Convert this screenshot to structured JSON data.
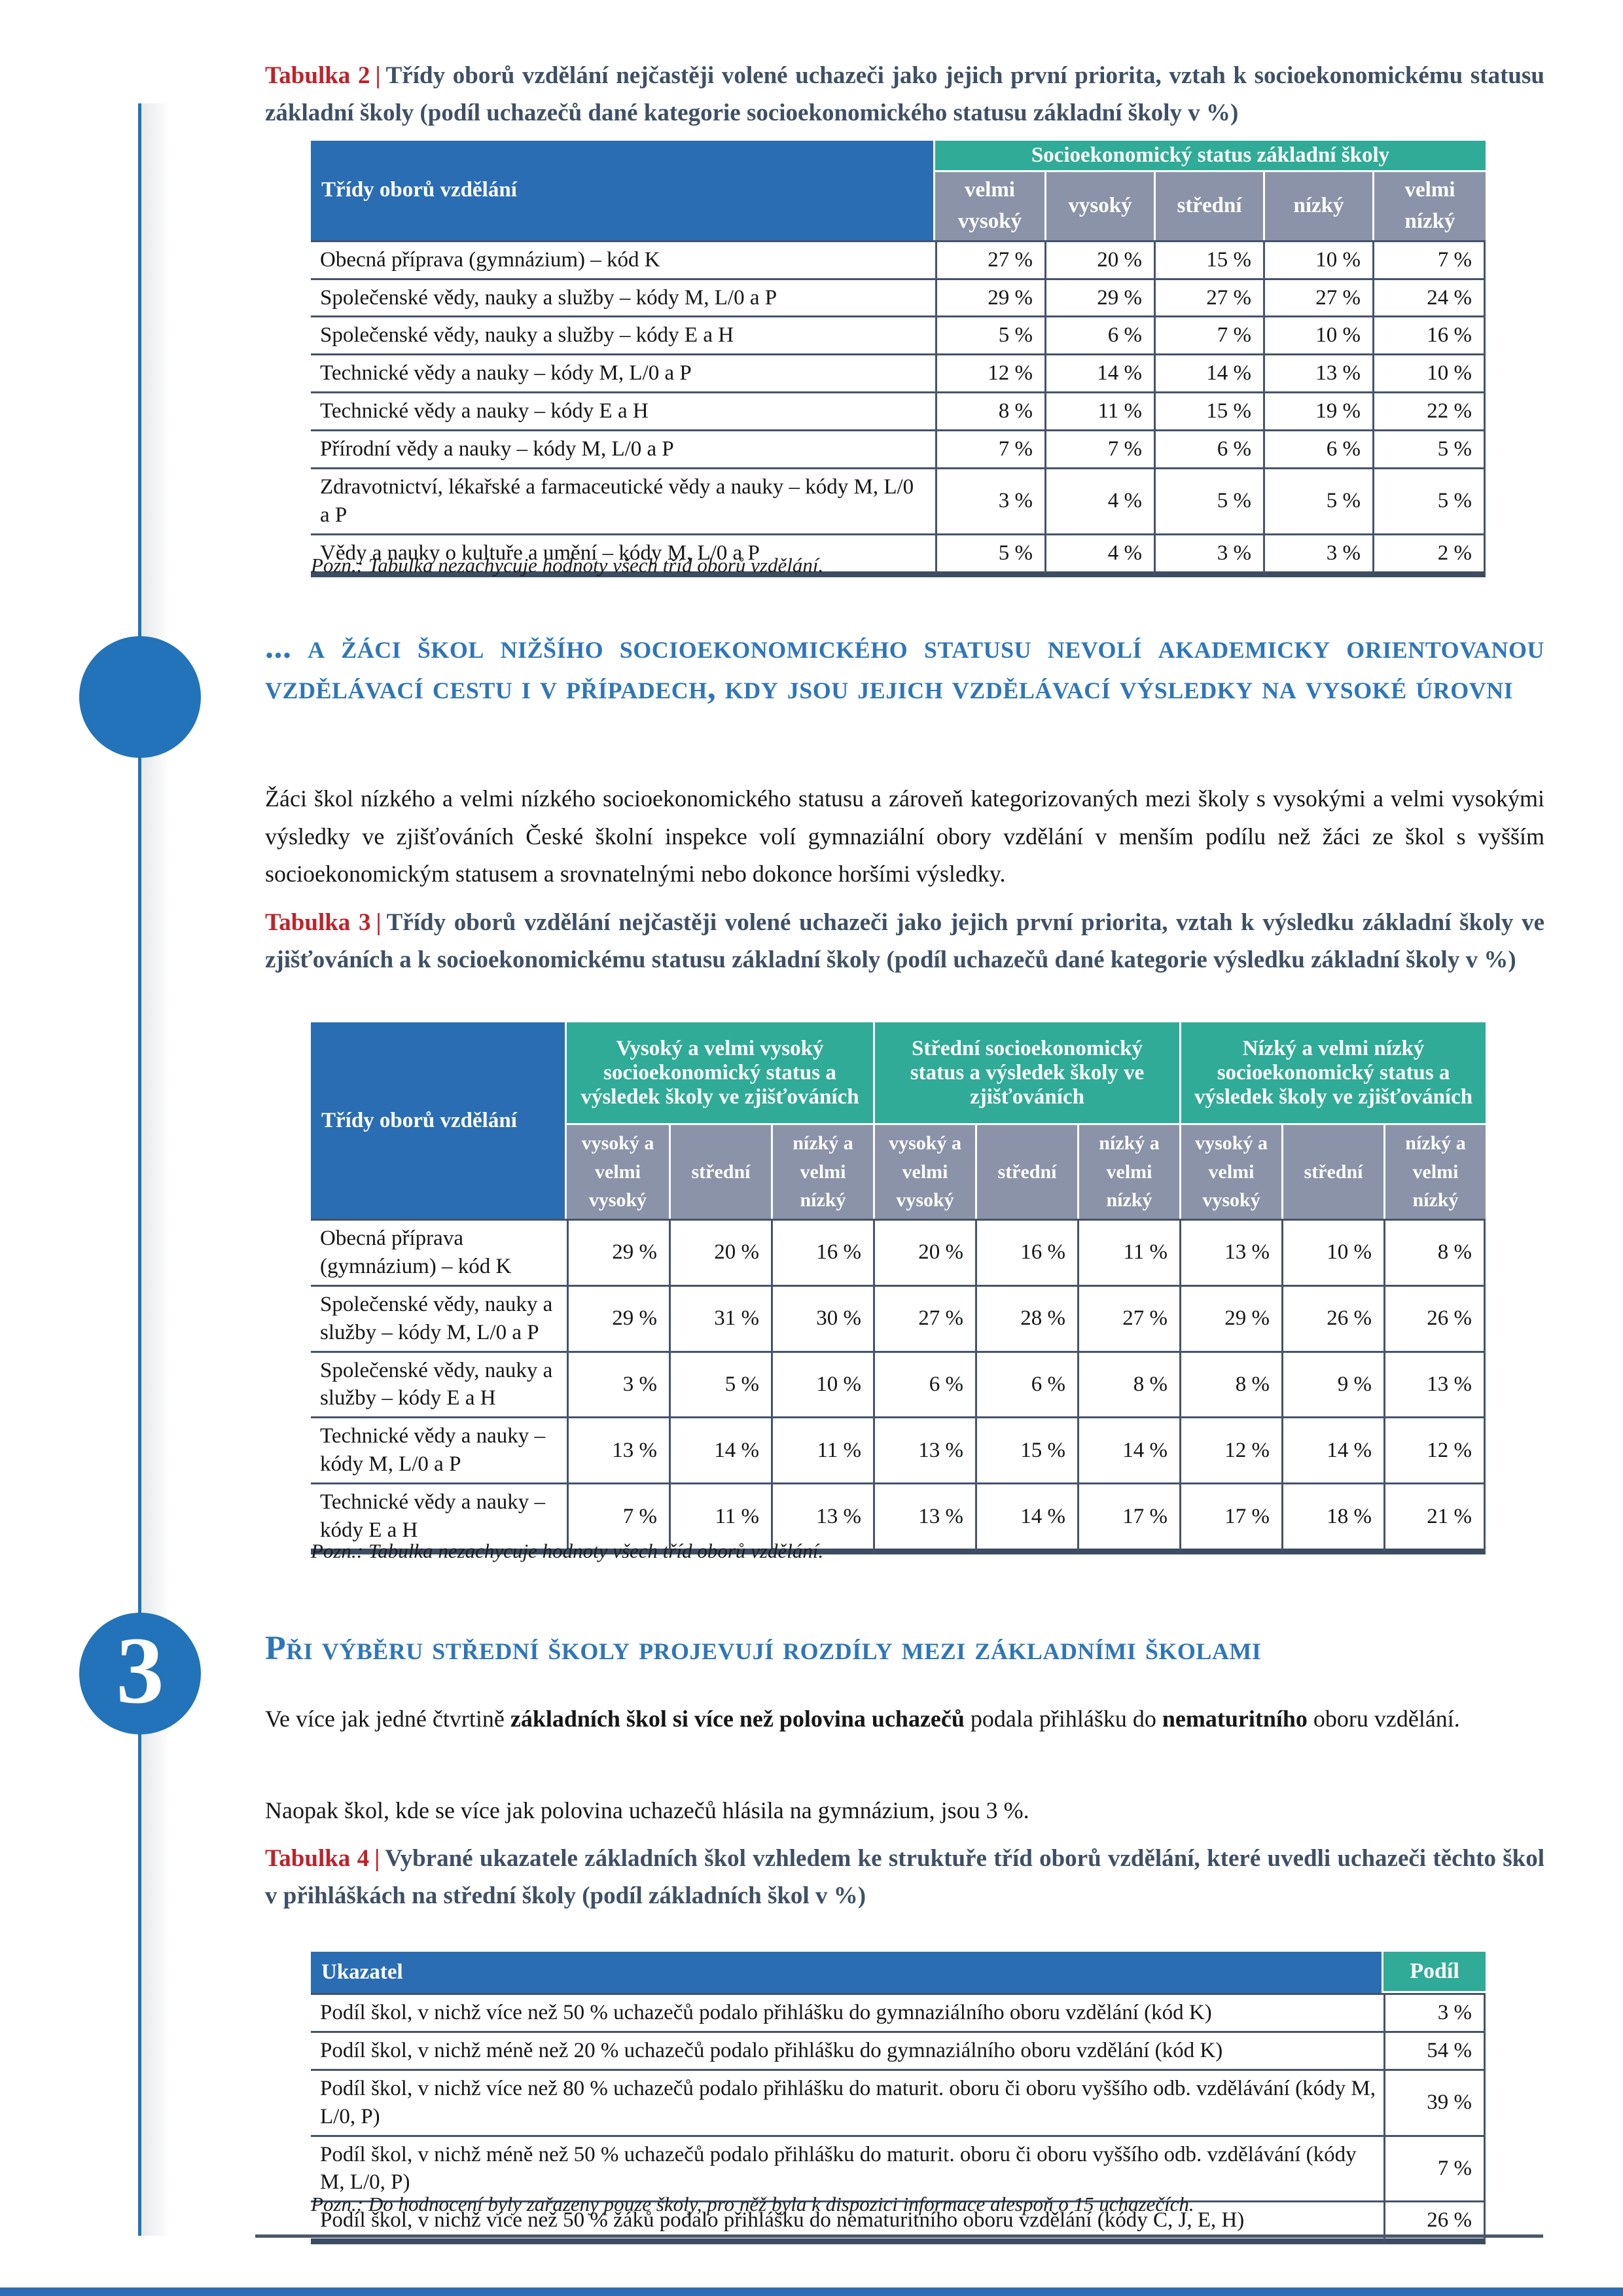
{
  "theme": {
    "blue_header": "#2a6db3",
    "teal_header": "#30ab97",
    "gray_subheader": "#8a93a8",
    "rail_blue": "#2273b9",
    "heading_blue": "#2e76ba",
    "title_slate": "#3e5066",
    "label_red": "#c02128",
    "grid_border": "#46536b"
  },
  "title_separator": "|",
  "table2": {
    "title_label": "Tabulka 2",
    "title_text": "Třídy oborů vzdělání nejčastěji volené uchazeči jako jejich první priorita, vztah k socioekonomickému statusu základní školy (podíl uchazečů dané kategorie socioekonomického statusu základní školy v %)",
    "corner_header": "Třídy oborů vzdělání",
    "group_header": "Socioekonomický status základní školy",
    "col_headers": [
      "velmi vysoký",
      "vysoký",
      "střední",
      "nízký",
      "velmi nízký"
    ],
    "rows": [
      {
        "label": "Obecná příprava (gymnázium) – kód K",
        "values": [
          "27 %",
          "20 %",
          "15 %",
          "10 %",
          "7 %"
        ]
      },
      {
        "label": "Společenské vědy, nauky a služby – kódy M, L/0 a P",
        "values": [
          "29 %",
          "29 %",
          "27 %",
          "27 %",
          "24 %"
        ]
      },
      {
        "label": "Společenské vědy, nauky a služby – kódy E a H",
        "values": [
          "5 %",
          "6 %",
          "7 %",
          "10 %",
          "16 %"
        ]
      },
      {
        "label": "Technické vědy a nauky – kódy M, L/0 a P",
        "values": [
          "12 %",
          "14 %",
          "14 %",
          "13 %",
          "10 %"
        ]
      },
      {
        "label": "Technické vědy a nauky – kódy E a H",
        "values": [
          "8 %",
          "11 %",
          "15 %",
          "19 %",
          "22 %"
        ]
      },
      {
        "label": "Přírodní vědy a nauky – kódy M, L/0 a P",
        "values": [
          "7 %",
          "7 %",
          "6 %",
          "6 %",
          "5 %"
        ]
      },
      {
        "label": "Zdravotnictví, lékařské a farmaceutické vědy a nauky – kódy M, L/0 a P",
        "values": [
          "3 %",
          "4 %",
          "5 %",
          "5 %",
          "5 %"
        ]
      },
      {
        "label": "Vědy a nauky o kultuře a umění – kódy M, L/0 a P",
        "values": [
          "5 %",
          "4 %",
          "3 %",
          "3 %",
          "2 %"
        ]
      }
    ],
    "note": "Pozn.: Tabulka nezachycuje hodnoty všech tříd oborů vzdělání."
  },
  "section2": {
    "heading": "... a žáci škol nižšího socioekonomického statusu nevolí akademicky orientovanou vzdělávací cestu i v případech, kdy jsou jejich vzdělávací výsledky na vysoké úrovni",
    "paragraph": "Žáci škol nízkého a velmi nízkého socioekonomického statusu a zároveň kategorizovaných mezi školy s vysokými a velmi vysokými výsledky ve zjišťováních České školní inspekce volí gymnaziální obory vzdělání v menším podílu než žáci ze škol s vyšším socioekonomickým statusem a srovnatelnými nebo dokonce horšími výsledky."
  },
  "table3": {
    "title_label": "Tabulka 3",
    "title_text": "Třídy oborů vzdělání nejčastěji volené uchazeči jako jejich první priorita, vztah k výsledku základní školy ve zjišťováních a k socioekonomickému statusu základní školy (podíl uchazečů dané kategorie výsledku základní školy v %)",
    "corner_header": "Třídy oborů vzdělání",
    "group_headers": [
      "Vysoký a velmi vysoký socioekonomický status a výsledek školy ve zjišťováních",
      "Střední socioekonomický status a výsledek školy ve zjišťováních",
      "Nízký a velmi nízký socioekonomický status a výsledek školy ve zjišťováních"
    ],
    "col_headers": [
      "vysoký a velmi vysoký",
      "střední",
      "nízký a velmi nízký"
    ],
    "rows": [
      {
        "label": "Obecná příprava (gymnázium) – kód K",
        "values": [
          "29 %",
          "20 %",
          "16 %",
          "20 %",
          "16 %",
          "11 %",
          "13 %",
          "10 %",
          "8 %"
        ]
      },
      {
        "label": "Společenské vědy, nauky a služby – kódy M, L/0 a P",
        "values": [
          "29 %",
          "31 %",
          "30 %",
          "27 %",
          "28 %",
          "27 %",
          "29 %",
          "26 %",
          "26 %"
        ]
      },
      {
        "label": "Společenské vědy, nauky a služby – kódy E a H",
        "values": [
          "3 %",
          "5 %",
          "10 %",
          "6 %",
          "6 %",
          "8 %",
          "8 %",
          "9 %",
          "13 %"
        ]
      },
      {
        "label": "Technické vědy a nauky – kódy M, L/0 a P",
        "values": [
          "13 %",
          "14 %",
          "11 %",
          "13 %",
          "15 %",
          "14 %",
          "12 %",
          "14 %",
          "12 %"
        ]
      },
      {
        "label": "Technické vědy a nauky – kódy E a H",
        "values": [
          "7 %",
          "11 %",
          "13 %",
          "13 %",
          "14 %",
          "17 %",
          "17 %",
          "18 %",
          "21 %"
        ]
      }
    ],
    "note": "Pozn.: Tabulka nezachycuje hodnoty všech tříd oborů vzdělání."
  },
  "section3": {
    "number": "3",
    "heading": "Při výběru střední školy projevují rozdíly mezi základními školami",
    "p1": [
      {
        "text": "Ve více jak jedné čtvrtině ",
        "bold": false
      },
      {
        "text": "základních škol si více než polovina uchazečů",
        "bold": true
      },
      {
        "text": " podala přihlášku do ",
        "bold": false
      },
      {
        "text": "nematuritního",
        "bold": true
      },
      {
        "text": " oboru vzdělání.",
        "bold": false
      }
    ],
    "p2": "Naopak škol, kde se více jak polovina uchazečů hlásila na gymnázium, jsou 3 %."
  },
  "table4": {
    "title_label": "Tabulka 4",
    "title_text": "Vybrané ukazatele základních škol vzhledem ke struktuře tříd oborů vzdělání, které uvedli uchazeči těchto škol v přihláškách na střední školy (podíl základních škol v %)",
    "col1_header": "Ukazatel",
    "col2_header": "Podíl",
    "rows": [
      {
        "label": "Podíl škol, v nichž více než 50 % uchazečů podalo přihlášku do gymnaziálního oboru vzdělání (kód K)",
        "values": [
          "3 %"
        ]
      },
      {
        "label": "Podíl škol, v nichž méně než 20 % uchazečů podalo přihlášku do gymnaziálního oboru vzdělání (kód K)",
        "values": [
          "54 %"
        ]
      },
      {
        "label": "Podíl škol, v nichž více než 80 % uchazečů podalo přihlášku do maturit. oboru či oboru vyššího odb. vzdělávání (kódy M, L/0, P)",
        "values": [
          "39 %"
        ]
      },
      {
        "label": "Podíl škol, v nichž méně než 50 % uchazečů podalo přihlášku do maturit. oboru či oboru vyššího odb. vzdělávání (kódy M, L/0, P)",
        "values": [
          "7 %"
        ]
      },
      {
        "label": "Podíl škol, v nichž více než 50 % žáků podalo přihlášku do nematuritního oboru vzdělání (kódy C, J, E, H)",
        "values": [
          "26 %"
        ]
      }
    ],
    "note": "Pozn.: Do hodnocení byly zařazeny pouze školy, pro něž byla k dispozici informace alespoň o 15 uchazečích."
  }
}
